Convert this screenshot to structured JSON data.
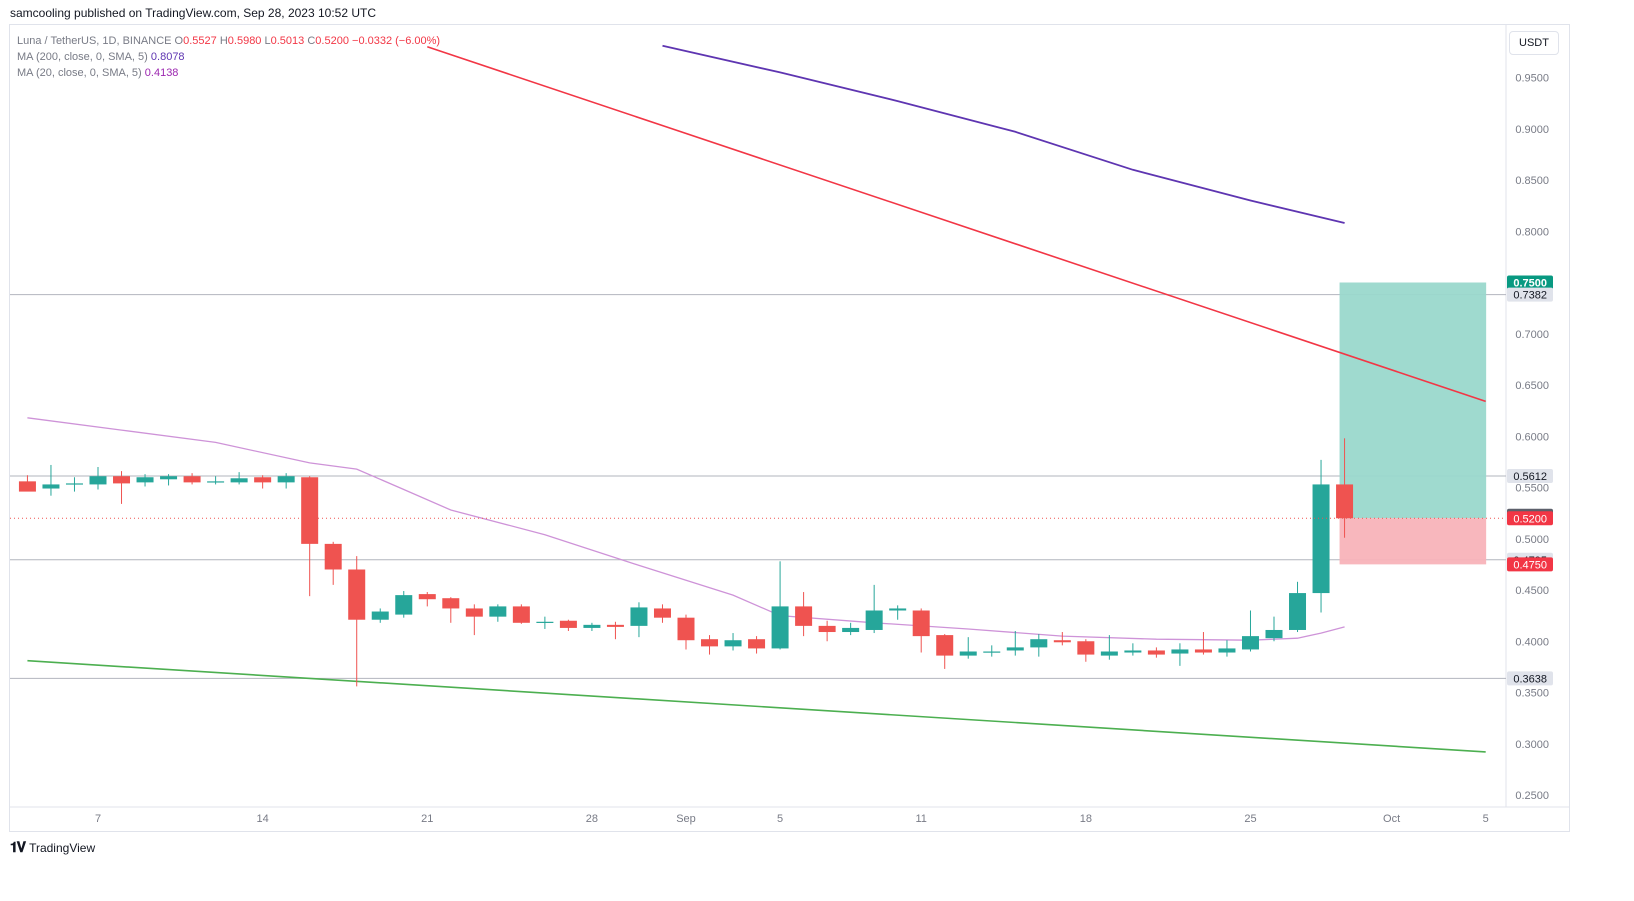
{
  "publisher_line": "samcooling published on TradingView.com, Sep 28, 2023 10:52 UTC",
  "legend": {
    "symbol_line": "Luna / TetherUS, 1D, BINANCE",
    "o_label": "O",
    "o_value": "0.5527",
    "h_label": "H",
    "h_value": "0.5980",
    "l_label": "L",
    "l_value": "0.5013",
    "c_label": "C",
    "c_value": "0.5200",
    "change": "−0.0332 (−6.00%)",
    "ma200_label": "MA (200, close, 0, SMA, 5)",
    "ma200_value": "0.8078",
    "ma20_label": "MA (20, close, 0, SMA, 5)",
    "ma20_value": "0.4138"
  },
  "currency_button": "USDT",
  "footer_logo": "TradingView",
  "footer_logo_icon": "tradingview-logo-icon",
  "colors": {
    "up": "#26a69a",
    "down": "#ef5350",
    "ma200": "#5e35b1",
    "ma20": "#ce93d8",
    "trend_red": "#f23645",
    "trend_green": "#4caf50",
    "profit_zone": "#9ad8cc",
    "loss_zone": "#f8b3b9"
  },
  "chart_data": {
    "type": "candlestick",
    "ylim": [
      0.25,
      0.97
    ],
    "y_ticks": [
      "0.9500",
      "0.9000",
      "0.8500",
      "0.8000",
      "0.7500",
      "0.7000",
      "0.6500",
      "0.6000",
      "0.5500",
      "0.5000",
      "0.4500",
      "0.4000",
      "0.3500",
      "0.3000",
      "0.2500"
    ],
    "x_ticks": [
      {
        "label": "7",
        "date": "2023-08-07"
      },
      {
        "label": "14",
        "date": "2023-08-14"
      },
      {
        "label": "21",
        "date": "2023-08-21"
      },
      {
        "label": "28",
        "date": "2023-08-28"
      },
      {
        "label": "Sep",
        "date": "2023-09-01"
      },
      {
        "label": "5",
        "date": "2023-09-05"
      },
      {
        "label": "11",
        "date": "2023-09-11"
      },
      {
        "label": "18",
        "date": "2023-09-18"
      },
      {
        "label": "25",
        "date": "2023-09-25"
      },
      {
        "label": "Oct",
        "date": "2023-10-01"
      },
      {
        "label": "5",
        "date": "2023-10-05"
      }
    ],
    "candles": [
      {
        "date": "2023-08-04",
        "o": 0.556,
        "h": 0.562,
        "l": 0.548,
        "c": 0.546
      },
      {
        "date": "2023-08-05",
        "o": 0.549,
        "h": 0.572,
        "l": 0.542,
        "c": 0.553
      },
      {
        "date": "2023-08-06",
        "o": 0.553,
        "h": 0.56,
        "l": 0.546,
        "c": 0.554
      },
      {
        "date": "2023-08-07",
        "o": 0.553,
        "h": 0.57,
        "l": 0.548,
        "c": 0.561
      },
      {
        "date": "2023-08-08",
        "o": 0.561,
        "h": 0.566,
        "l": 0.534,
        "c": 0.554
      },
      {
        "date": "2023-08-09",
        "o": 0.555,
        "h": 0.563,
        "l": 0.551,
        "c": 0.56
      },
      {
        "date": "2023-08-10",
        "o": 0.558,
        "h": 0.563,
        "l": 0.552,
        "c": 0.561
      },
      {
        "date": "2023-08-11",
        "o": 0.561,
        "h": 0.564,
        "l": 0.553,
        "c": 0.555
      },
      {
        "date": "2023-08-12",
        "o": 0.556,
        "h": 0.561,
        "l": 0.553,
        "c": 0.556
      },
      {
        "date": "2023-08-13",
        "o": 0.555,
        "h": 0.565,
        "l": 0.553,
        "c": 0.559
      },
      {
        "date": "2023-08-14",
        "o": 0.56,
        "h": 0.562,
        "l": 0.549,
        "c": 0.555
      },
      {
        "date": "2023-08-15",
        "o": 0.555,
        "h": 0.564,
        "l": 0.549,
        "c": 0.561
      },
      {
        "date": "2023-08-16",
        "o": 0.56,
        "h": 0.561,
        "l": 0.444,
        "c": 0.495
      },
      {
        "date": "2023-08-17",
        "o": 0.495,
        "h": 0.497,
        "l": 0.455,
        "c": 0.47
      },
      {
        "date": "2023-08-18",
        "o": 0.47,
        "h": 0.483,
        "l": 0.356,
        "c": 0.421
      },
      {
        "date": "2023-08-19",
        "o": 0.421,
        "h": 0.432,
        "l": 0.418,
        "c": 0.429
      },
      {
        "date": "2023-08-20",
        "o": 0.426,
        "h": 0.449,
        "l": 0.423,
        "c": 0.445
      },
      {
        "date": "2023-08-21",
        "o": 0.446,
        "h": 0.448,
        "l": 0.434,
        "c": 0.441
      },
      {
        "date": "2023-08-22",
        "o": 0.442,
        "h": 0.443,
        "l": 0.418,
        "c": 0.432
      },
      {
        "date": "2023-08-23",
        "o": 0.432,
        "h": 0.436,
        "l": 0.406,
        "c": 0.424
      },
      {
        "date": "2023-08-24",
        "o": 0.424,
        "h": 0.436,
        "l": 0.419,
        "c": 0.434
      },
      {
        "date": "2023-08-25",
        "o": 0.434,
        "h": 0.436,
        "l": 0.417,
        "c": 0.418
      },
      {
        "date": "2023-08-26",
        "o": 0.418,
        "h": 0.424,
        "l": 0.412,
        "c": 0.419
      },
      {
        "date": "2023-08-27",
        "o": 0.42,
        "h": 0.421,
        "l": 0.41,
        "c": 0.413
      },
      {
        "date": "2023-08-28",
        "o": 0.413,
        "h": 0.418,
        "l": 0.41,
        "c": 0.416
      },
      {
        "date": "2023-08-29",
        "o": 0.416,
        "h": 0.419,
        "l": 0.402,
        "c": 0.414
      },
      {
        "date": "2023-08-30",
        "o": 0.415,
        "h": 0.438,
        "l": 0.404,
        "c": 0.433
      },
      {
        "date": "2023-08-31",
        "o": 0.432,
        "h": 0.436,
        "l": 0.418,
        "c": 0.423
      },
      {
        "date": "2023-09-01",
        "o": 0.423,
        "h": 0.426,
        "l": 0.392,
        "c": 0.401
      },
      {
        "date": "2023-09-02",
        "o": 0.402,
        "h": 0.406,
        "l": 0.387,
        "c": 0.395
      },
      {
        "date": "2023-09-03",
        "o": 0.395,
        "h": 0.408,
        "l": 0.391,
        "c": 0.401
      },
      {
        "date": "2023-09-04",
        "o": 0.402,
        "h": 0.405,
        "l": 0.388,
        "c": 0.393
      },
      {
        "date": "2023-09-05",
        "o": 0.393,
        "h": 0.478,
        "l": 0.392,
        "c": 0.434
      },
      {
        "date": "2023-09-06",
        "o": 0.434,
        "h": 0.448,
        "l": 0.405,
        "c": 0.415
      },
      {
        "date": "2023-09-07",
        "o": 0.415,
        "h": 0.42,
        "l": 0.4,
        "c": 0.409
      },
      {
        "date": "2023-09-08",
        "o": 0.409,
        "h": 0.418,
        "l": 0.406,
        "c": 0.413
      },
      {
        "date": "2023-09-09",
        "o": 0.411,
        "h": 0.455,
        "l": 0.408,
        "c": 0.43
      },
      {
        "date": "2023-09-10",
        "o": 0.43,
        "h": 0.435,
        "l": 0.421,
        "c": 0.432
      },
      {
        "date": "2023-09-11",
        "o": 0.43,
        "h": 0.432,
        "l": 0.389,
        "c": 0.405
      },
      {
        "date": "2023-09-12",
        "o": 0.406,
        "h": 0.407,
        "l": 0.373,
        "c": 0.386
      },
      {
        "date": "2023-09-13",
        "o": 0.386,
        "h": 0.404,
        "l": 0.383,
        "c": 0.39
      },
      {
        "date": "2023-09-14",
        "o": 0.389,
        "h": 0.396,
        "l": 0.385,
        "c": 0.39
      },
      {
        "date": "2023-09-15",
        "o": 0.391,
        "h": 0.41,
        "l": 0.386,
        "c": 0.394
      },
      {
        "date": "2023-09-16",
        "o": 0.394,
        "h": 0.407,
        "l": 0.385,
        "c": 0.402
      },
      {
        "date": "2023-09-17",
        "o": 0.401,
        "h": 0.409,
        "l": 0.396,
        "c": 0.399
      },
      {
        "date": "2023-09-18",
        "o": 0.4,
        "h": 0.402,
        "l": 0.38,
        "c": 0.387
      },
      {
        "date": "2023-09-19",
        "o": 0.386,
        "h": 0.406,
        "l": 0.382,
        "c": 0.39
      },
      {
        "date": "2023-09-20",
        "o": 0.389,
        "h": 0.398,
        "l": 0.386,
        "c": 0.391
      },
      {
        "date": "2023-09-21",
        "o": 0.391,
        "h": 0.394,
        "l": 0.384,
        "c": 0.387
      },
      {
        "date": "2023-09-22",
        "o": 0.388,
        "h": 0.398,
        "l": 0.376,
        "c": 0.392
      },
      {
        "date": "2023-09-23",
        "o": 0.392,
        "h": 0.409,
        "l": 0.387,
        "c": 0.389
      },
      {
        "date": "2023-09-24",
        "o": 0.389,
        "h": 0.401,
        "l": 0.385,
        "c": 0.393
      },
      {
        "date": "2023-09-25",
        "o": 0.392,
        "h": 0.43,
        "l": 0.39,
        "c": 0.405
      },
      {
        "date": "2023-09-26",
        "o": 0.403,
        "h": 0.424,
        "l": 0.4,
        "c": 0.411
      },
      {
        "date": "2023-09-27",
        "o": 0.411,
        "h": 0.458,
        "l": 0.409,
        "c": 0.447
      },
      {
        "date": "2023-09-28",
        "o": 0.447,
        "h": 0.577,
        "l": 0.428,
        "c": 0.553
      },
      {
        "date": "2023-09-29",
        "o": 0.553,
        "h": 0.598,
        "l": 0.501,
        "c": 0.52
      }
    ],
    "ma20": [
      {
        "date": "2023-08-04",
        "v": 0.618
      },
      {
        "date": "2023-08-08",
        "v": 0.606
      },
      {
        "date": "2023-08-12",
        "v": 0.594
      },
      {
        "date": "2023-08-16",
        "v": 0.574
      },
      {
        "date": "2023-08-18",
        "v": 0.568
      },
      {
        "date": "2023-08-20",
        "v": 0.548
      },
      {
        "date": "2023-08-22",
        "v": 0.528
      },
      {
        "date": "2023-08-26",
        "v": 0.504
      },
      {
        "date": "2023-08-30",
        "v": 0.474
      },
      {
        "date": "2023-09-03",
        "v": 0.445
      },
      {
        "date": "2023-09-05",
        "v": 0.425
      },
      {
        "date": "2023-09-09",
        "v": 0.418
      },
      {
        "date": "2023-09-13",
        "v": 0.412
      },
      {
        "date": "2023-09-17",
        "v": 0.405
      },
      {
        "date": "2023-09-21",
        "v": 0.402
      },
      {
        "date": "2023-09-25",
        "v": 0.401
      },
      {
        "date": "2023-09-27",
        "v": 0.403
      },
      {
        "date": "2023-09-28",
        "v": 0.408
      },
      {
        "date": "2023-09-29",
        "v": 0.414
      }
    ],
    "ma200": [
      {
        "date": "2023-08-31",
        "v": 0.981
      },
      {
        "date": "2023-09-05",
        "v": 0.955
      },
      {
        "date": "2023-09-10",
        "v": 0.927
      },
      {
        "date": "2023-09-15",
        "v": 0.897
      },
      {
        "date": "2023-09-20",
        "v": 0.86
      },
      {
        "date": "2023-09-25",
        "v": 0.83
      },
      {
        "date": "2023-09-29",
        "v": 0.808
      }
    ],
    "trendline_red": [
      {
        "date": "2023-08-21",
        "v": 0.98
      },
      {
        "date": "2023-10-05",
        "v": 0.634
      }
    ],
    "trendline_green": [
      {
        "date": "2023-08-04",
        "v": 0.381
      },
      {
        "date": "2023-10-05",
        "v": 0.292
      }
    ],
    "horizontal_levels": [
      "0.7382",
      "0.5612",
      "0.4795",
      "0.3638"
    ],
    "current_close": "0.5200",
    "position": {
      "entry": 0.52,
      "target": 0.75,
      "stop": 0.475,
      "start": "2023-09-29",
      "end": "2023-10-04"
    },
    "price_badges": [
      {
        "label": "0.7500",
        "value": 0.75,
        "style": "target"
      },
      {
        "label": "0.7382",
        "value": 0.7382,
        "style": "level"
      },
      {
        "label": "0.5612",
        "value": 0.5612,
        "style": "level"
      },
      {
        "label": "0.5225",
        "value": 0.5225,
        "style": "dark"
      },
      {
        "label": "0.5200",
        "value": 0.52,
        "style": "close"
      },
      {
        "label": "0.4795",
        "value": 0.4795,
        "style": "level"
      },
      {
        "label": "0.4750",
        "value": 0.475,
        "style": "stop"
      },
      {
        "label": "0.3638",
        "value": 0.3638,
        "style": "level"
      }
    ]
  }
}
